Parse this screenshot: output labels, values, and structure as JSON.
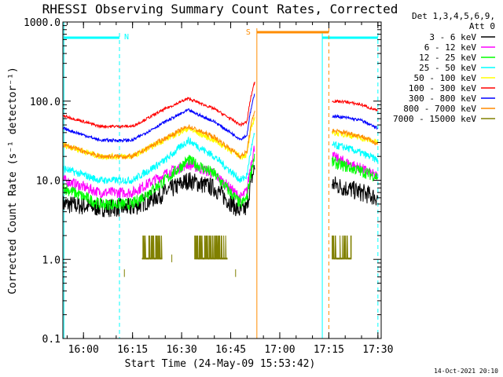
{
  "chart_data": {
    "type": "line",
    "title": "RHESSI Observing Summary Count Rates, Corrected",
    "xlabel": "Start Time (24-May-09 15:53:42)",
    "ylabel": "Corrected Count Rate (s⁻¹ detector⁻¹)",
    "yscale": "log",
    "ylim": [
      0.1,
      1000
    ],
    "x_range_minutes": [
      "15:53:42",
      "17:31"
    ],
    "x_ticks": [
      "16:00",
      "16:15",
      "16:30",
      "16:45",
      "17:00",
      "17:15",
      "17:30"
    ],
    "y_ticks": [
      "0.1",
      "1.0",
      "10.0",
      "100.0",
      "1000.0"
    ],
    "legend_header": [
      "Det 1,3,4,5,6,9,",
      "Att 0"
    ],
    "legend_position": "right",
    "series": [
      {
        "name": "3 - 6 keV",
        "color": "#000000",
        "x": [
          "15:54",
          "16:05",
          "16:15",
          "16:25",
          "16:32",
          "16:40",
          "16:48",
          "16:52",
          "17:16",
          "17:20",
          "17:25",
          "17:30"
        ],
        "y": [
          5,
          4.5,
          4.5,
          7,
          10,
          8,
          4,
          5,
          9,
          8,
          7,
          6
        ]
      },
      {
        "name": "6 - 12 keV",
        "color": "#ff00ff",
        "x": [
          "15:54",
          "16:05",
          "16:15",
          "16:25",
          "16:32",
          "16:40",
          "16:48",
          "16:52",
          "17:16",
          "17:20",
          "17:25",
          "17:30"
        ],
        "y": [
          10,
          7,
          7,
          12,
          16,
          12,
          6,
          9,
          20,
          17,
          14,
          11
        ]
      },
      {
        "name": "12 - 25 keV",
        "color": "#00ff00",
        "x": [
          "15:54",
          "16:05",
          "16:15",
          "16:25",
          "16:32",
          "16:40",
          "16:48",
          "16:52",
          "17:16",
          "17:20",
          "17:25",
          "17:30"
        ],
        "y": [
          8,
          5,
          5,
          10,
          18,
          12,
          5,
          7,
          17,
          15,
          13,
          11
        ]
      },
      {
        "name": "25 - 50 keV",
        "color": "#00ffff",
        "x": [
          "15:54",
          "16:05",
          "16:15",
          "16:25",
          "16:32",
          "16:40",
          "16:48",
          "16:52",
          "17:16",
          "17:20",
          "17:25",
          "17:30"
        ],
        "y": [
          14,
          10,
          10,
          18,
          32,
          20,
          10,
          13,
          28,
          26,
          22,
          18
        ]
      },
      {
        "name": "50 - 100 keV",
        "color": "#ffff00",
        "x": [
          "15:54",
          "16:05",
          "16:15",
          "16:25",
          "16:32",
          "16:40",
          "16:48",
          "16:52",
          "17:16",
          "17:20",
          "17:25",
          "17:30"
        ],
        "y": [
          28,
          20,
          20,
          33,
          45,
          32,
          20,
          22,
          40,
          38,
          34,
          30
        ]
      },
      {
        "name": "100 - 300 keV",
        "color": "#ff0000",
        "x": [
          "15:54",
          "16:05",
          "16:15",
          "16:25",
          "16:32",
          "16:40",
          "16:48",
          "16:52",
          "17:16",
          "17:20",
          "17:25",
          "17:30"
        ],
        "y": [
          65,
          48,
          48,
          80,
          108,
          80,
          50,
          60,
          100,
          98,
          90,
          75
        ]
      },
      {
        "name": "300 - 800 keV",
        "color": "#0000ff",
        "x": [
          "15:54",
          "16:05",
          "16:15",
          "16:25",
          "16:32",
          "16:40",
          "16:48",
          "16:52",
          "17:16",
          "17:20",
          "17:25",
          "17:30"
        ],
        "y": [
          45,
          32,
          32,
          55,
          77,
          55,
          33,
          42,
          65,
          62,
          57,
          45
        ]
      },
      {
        "name": "800 - 7000 keV",
        "color": "#ff8c00",
        "x": [
          "15:54",
          "16:05",
          "16:15",
          "16:25",
          "16:32",
          "16:40",
          "16:48",
          "16:52",
          "17:16",
          "17:20",
          "17:25",
          "17:30"
        ],
        "y": [
          28,
          20,
          20,
          34,
          48,
          35,
          20,
          26,
          42,
          40,
          36,
          29
        ]
      },
      {
        "name": "7000 - 15000 keV",
        "color": "#808000",
        "x": [
          "16:21",
          "16:23",
          "16:40",
          "16:42",
          "17:17",
          "17:22"
        ],
        "y": [
          2,
          1.5,
          2,
          1.5,
          2,
          1.5
        ]
      }
    ],
    "markers": [
      {
        "label": "N",
        "color": "#00ffff",
        "start": "15:54",
        "end": "16:11"
      },
      {
        "label": "S",
        "color": "#ff8c00",
        "start": "16:53",
        "end": "17:15"
      }
    ],
    "footer_date": "14-Oct-2021 20:10"
  }
}
